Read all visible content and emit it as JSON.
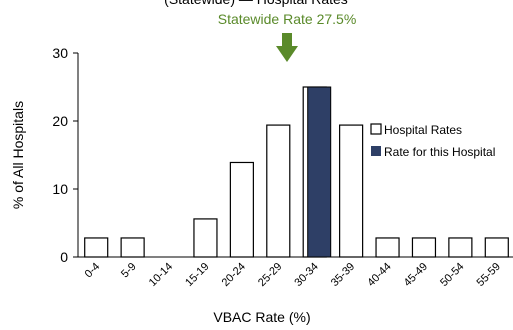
{
  "chart_data": {
    "type": "bar",
    "title_partial": "(Statewide) — Hospital Rates",
    "annotation": {
      "label": "Statewide Rate 27.5%",
      "value": 27.5,
      "color": "#5a8a2a"
    },
    "xlabel": "VBAC  Rate (%)",
    "ylabel": "% of All Hospitals",
    "ylim": [
      0,
      30
    ],
    "yticks": [
      0,
      10,
      20,
      30
    ],
    "categories": [
      "0-4",
      "5-9",
      "10-14",
      "15-19",
      "20-24",
      "25-29",
      "30-34",
      "35-39",
      "40-44",
      "45-49",
      "50-54",
      "55-59"
    ],
    "series": [
      {
        "name": "Hospital Rates",
        "values": [
          2.8,
          2.8,
          0,
          5.6,
          13.9,
          19.4,
          25.0,
          19.4,
          2.8,
          2.8,
          2.8,
          2.8
        ],
        "color": "#ffffff",
        "stroke": "#000000"
      }
    ],
    "highlight": {
      "name": "Rate for this Hospital",
      "category": "30-34",
      "value": 25.0,
      "color": "#2e3f66"
    },
    "legend_position": "right"
  }
}
